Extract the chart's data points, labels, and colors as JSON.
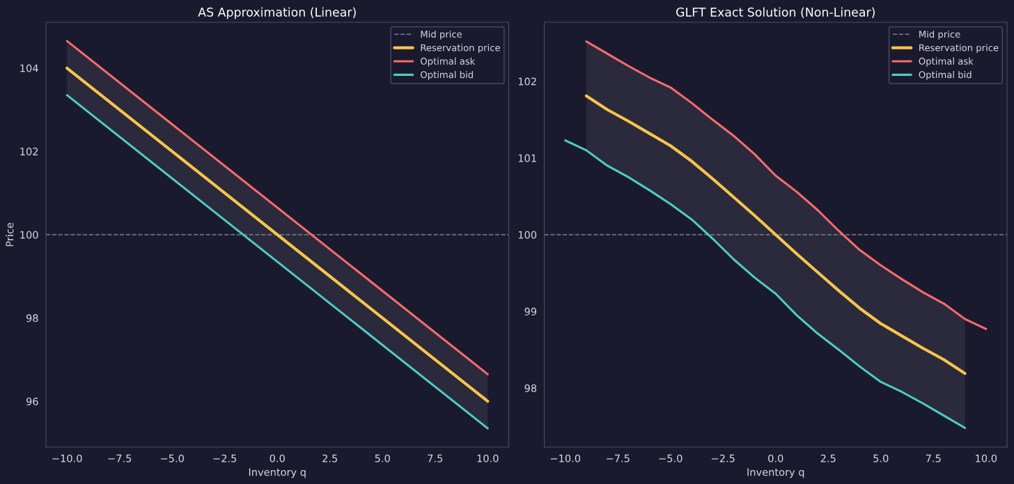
{
  "chart_data": [
    {
      "type": "line",
      "title": "AS Approximation (Linear)",
      "xlabel": "Inventory q",
      "ylabel": "Price",
      "xlim": [
        -11,
        11
      ],
      "ylim": [
        94.9,
        105.1
      ],
      "xticks": [
        {
          "value": -10,
          "label": "−10.0"
        },
        {
          "value": -7.5,
          "label": "−7.5"
        },
        {
          "value": -5,
          "label": "−5.0"
        },
        {
          "value": -2.5,
          "label": "−2.5"
        },
        {
          "value": 0,
          "label": "0.0"
        },
        {
          "value": 2.5,
          "label": "2.5"
        },
        {
          "value": 5,
          "label": "5.0"
        },
        {
          "value": 7.5,
          "label": "7.5"
        },
        {
          "value": 10,
          "label": "10.0"
        }
      ],
      "yticks": [
        96,
        98,
        100,
        102,
        104
      ],
      "grid": false,
      "legend": "top right",
      "ref_lines": [
        {
          "axis": "y",
          "value": 100,
          "label": "Mid price",
          "color": "#8a8a9a",
          "line_style": "dashed"
        }
      ],
      "series": [
        {
          "name": "Reservation price",
          "color": "#f7c548",
          "x": [
            -10,
            10
          ],
          "values": [
            104,
            96
          ],
          "lower": [
            103.35,
            95.35
          ],
          "upper": [
            104.65,
            96.65
          ]
        },
        {
          "name": "Optimal ask",
          "color": "#ff6b6b",
          "x": [
            -10,
            10
          ],
          "values": [
            104.65,
            96.65
          ]
        },
        {
          "name": "Optimal bid",
          "color": "#4ecdc4",
          "x": [
            -10,
            10
          ],
          "values": [
            103.35,
            95.35
          ]
        }
      ]
    },
    {
      "type": "line",
      "title": "GLFT Exact Solution (Non-Linear)",
      "xlabel": "Inventory q",
      "xlim": [
        -11,
        11
      ],
      "ylim": [
        97.23,
        102.77
      ],
      "xticks": [
        {
          "value": -10,
          "label": "−10.0"
        },
        {
          "value": -7.5,
          "label": "−7.5"
        },
        {
          "value": -5,
          "label": "−5.0"
        },
        {
          "value": -2.5,
          "label": "−2.5"
        },
        {
          "value": 0,
          "label": "0.0"
        },
        {
          "value": 2.5,
          "label": "2.5"
        },
        {
          "value": 5,
          "label": "5.0"
        },
        {
          "value": 7.5,
          "label": "7.5"
        },
        {
          "value": 10,
          "label": "10.0"
        }
      ],
      "yticks": [
        98,
        99,
        100,
        101,
        102
      ],
      "grid": false,
      "legend": "top right",
      "ref_lines": [
        {
          "axis": "y",
          "value": 100,
          "label": "Mid price",
          "color": "#8a8a9a",
          "line_style": "dashed"
        }
      ],
      "series": [
        {
          "name": "Reservation price",
          "color": "#f7c548",
          "x": [
            -9,
            -8,
            -7,
            -6,
            -5,
            -4,
            -3,
            -2,
            -1,
            0,
            1,
            2,
            3,
            4,
            5,
            6,
            7,
            8,
            9
          ],
          "values": [
            101.81,
            101.63,
            101.48,
            101.32,
            101.16,
            100.96,
            100.73,
            100.49,
            100.25,
            100,
            99.75,
            99.51,
            99.27,
            99.04,
            98.84,
            98.68,
            98.52,
            98.37,
            98.19
          ],
          "lower": [
            101.1,
            100.9,
            100.75,
            100.58,
            100.4,
            100.2,
            99.95,
            99.68,
            99.44,
            99.23,
            98.95,
            98.71,
            98.5,
            98.28,
            98.08,
            97.95,
            97.8,
            97.64,
            97.48
          ],
          "upper": [
            102.52,
            102.36,
            102.2,
            102.05,
            101.92,
            101.72,
            101.5,
            101.29,
            101.05,
            100.77,
            100.56,
            100.32,
            100.05,
            99.8,
            99.6,
            99.42,
            99.25,
            99.1,
            98.9
          ]
        },
        {
          "name": "Optimal ask",
          "color": "#ff6b6b",
          "x": [
            -9,
            -8,
            -7,
            -6,
            -5,
            -4,
            -3,
            -2,
            -1,
            0,
            1,
            2,
            3,
            4,
            5,
            6,
            7,
            8,
            9,
            10
          ],
          "values": [
            102.52,
            102.36,
            102.2,
            102.05,
            101.92,
            101.72,
            101.5,
            101.29,
            101.05,
            100.77,
            100.56,
            100.32,
            100.05,
            99.8,
            99.6,
            99.42,
            99.25,
            99.1,
            98.9,
            98.77
          ]
        },
        {
          "name": "Optimal bid",
          "color": "#4ecdc4",
          "x": [
            -10,
            -9,
            -8,
            -7,
            -6,
            -5,
            -4,
            -3,
            -2,
            -1,
            0,
            1,
            2,
            3,
            4,
            5,
            6,
            7,
            8,
            9
          ],
          "values": [
            101.23,
            101.1,
            100.9,
            100.75,
            100.58,
            100.4,
            100.2,
            99.95,
            99.68,
            99.44,
            99.23,
            98.95,
            98.71,
            98.5,
            98.28,
            98.08,
            97.95,
            97.8,
            97.64,
            97.48
          ]
        }
      ]
    }
  ]
}
